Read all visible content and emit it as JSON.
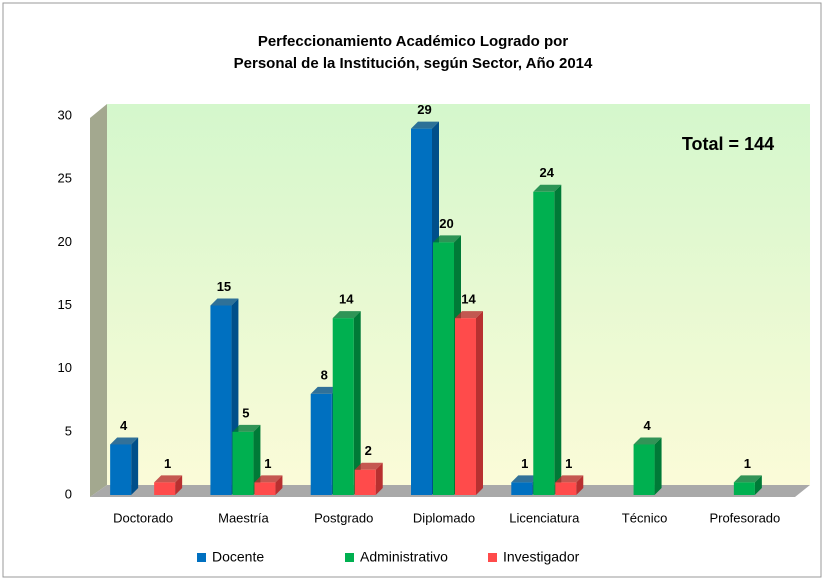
{
  "chart_data": {
    "type": "bar3d",
    "title": [
      "Perfeccionamiento  Académico Logrado por",
      "Personal de la Institución, según Sector, Año 2014"
    ],
    "annotation": "Total = 144",
    "categories": [
      "Doctorado",
      "Maestría",
      "Postgrado",
      "Diplomado",
      "Licenciatura",
      "Técnico",
      "Profesorado"
    ],
    "series": [
      {
        "name": "Docente",
        "color": "#0070c0",
        "side": "#004f8a",
        "values": [
          4,
          15,
          8,
          29,
          1,
          null,
          null
        ]
      },
      {
        "name": "Administrativo",
        "color": "#00b050",
        "side": "#007a37",
        "values": [
          null,
          5,
          14,
          20,
          24,
          4,
          1
        ]
      },
      {
        "name": "Investigador",
        "color": "#ff4b4b",
        "side": "#b83030",
        "values": [
          1,
          1,
          2,
          14,
          1,
          null,
          null
        ]
      }
    ],
    "ylim": [
      0,
      30
    ],
    "yticks": [
      0,
      5,
      10,
      15,
      20,
      25,
      30
    ],
    "grid": false,
    "legend": "bottom"
  }
}
